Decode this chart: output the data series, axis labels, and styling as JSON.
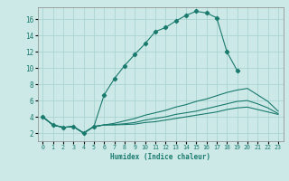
{
  "xlabel": "Humidex (Indice chaleur)",
  "bg_color": "#cce9e7",
  "grid_color": "#aad4d2",
  "line_color": "#1a7a6e",
  "xlim": [
    -0.5,
    23.5
  ],
  "ylim": [
    1.0,
    17.5
  ],
  "xticks": [
    0,
    1,
    2,
    3,
    4,
    5,
    6,
    7,
    8,
    9,
    10,
    11,
    12,
    13,
    14,
    15,
    16,
    17,
    18,
    19,
    20,
    21,
    22,
    23
  ],
  "yticks": [
    2,
    4,
    6,
    8,
    10,
    12,
    14,
    16
  ],
  "series1_x": [
    0,
    1,
    2,
    3,
    4,
    5,
    6,
    7,
    8,
    9,
    10,
    11,
    12,
    13,
    14,
    15,
    16,
    17,
    18,
    19
  ],
  "series1_y": [
    4.0,
    3.0,
    2.7,
    2.8,
    2.0,
    2.8,
    6.7,
    8.7,
    10.3,
    11.7,
    13.0,
    14.5,
    15.0,
    15.8,
    16.5,
    17.0,
    16.8,
    16.2,
    12.0,
    9.7
  ],
  "series2_x": [
    0,
    1,
    2,
    3,
    4,
    5,
    6,
    7,
    8,
    9,
    10,
    11,
    12,
    13,
    14,
    15,
    16,
    17,
    18,
    19,
    20,
    21,
    22,
    23
  ],
  "series2_y": [
    4.0,
    3.0,
    2.7,
    2.8,
    2.0,
    2.8,
    3.0,
    3.2,
    3.5,
    3.8,
    4.2,
    4.5,
    4.8,
    5.2,
    5.5,
    5.9,
    6.2,
    6.6,
    7.0,
    7.3,
    7.5,
    6.7,
    5.9,
    4.7
  ],
  "series3_x": [
    0,
    1,
    2,
    3,
    4,
    5,
    6,
    7,
    8,
    9,
    10,
    11,
    12,
    13,
    14,
    15,
    16,
    17,
    18,
    19,
    20,
    21,
    22,
    23
  ],
  "series3_y": [
    4.0,
    3.0,
    2.7,
    2.8,
    2.0,
    2.8,
    3.0,
    3.05,
    3.15,
    3.3,
    3.6,
    3.8,
    4.0,
    4.3,
    4.5,
    4.7,
    5.0,
    5.3,
    5.6,
    5.9,
    6.0,
    5.6,
    5.1,
    4.4
  ],
  "series4_x": [
    0,
    1,
    2,
    3,
    4,
    5,
    6,
    7,
    8,
    9,
    10,
    11,
    12,
    13,
    14,
    15,
    16,
    17,
    18,
    19,
    20,
    21,
    22,
    23
  ],
  "series4_y": [
    4.0,
    3.0,
    2.7,
    2.8,
    2.0,
    2.8,
    3.0,
    3.0,
    3.05,
    3.1,
    3.3,
    3.4,
    3.6,
    3.8,
    4.0,
    4.2,
    4.4,
    4.6,
    4.9,
    5.1,
    5.2,
    4.9,
    4.6,
    4.3
  ]
}
